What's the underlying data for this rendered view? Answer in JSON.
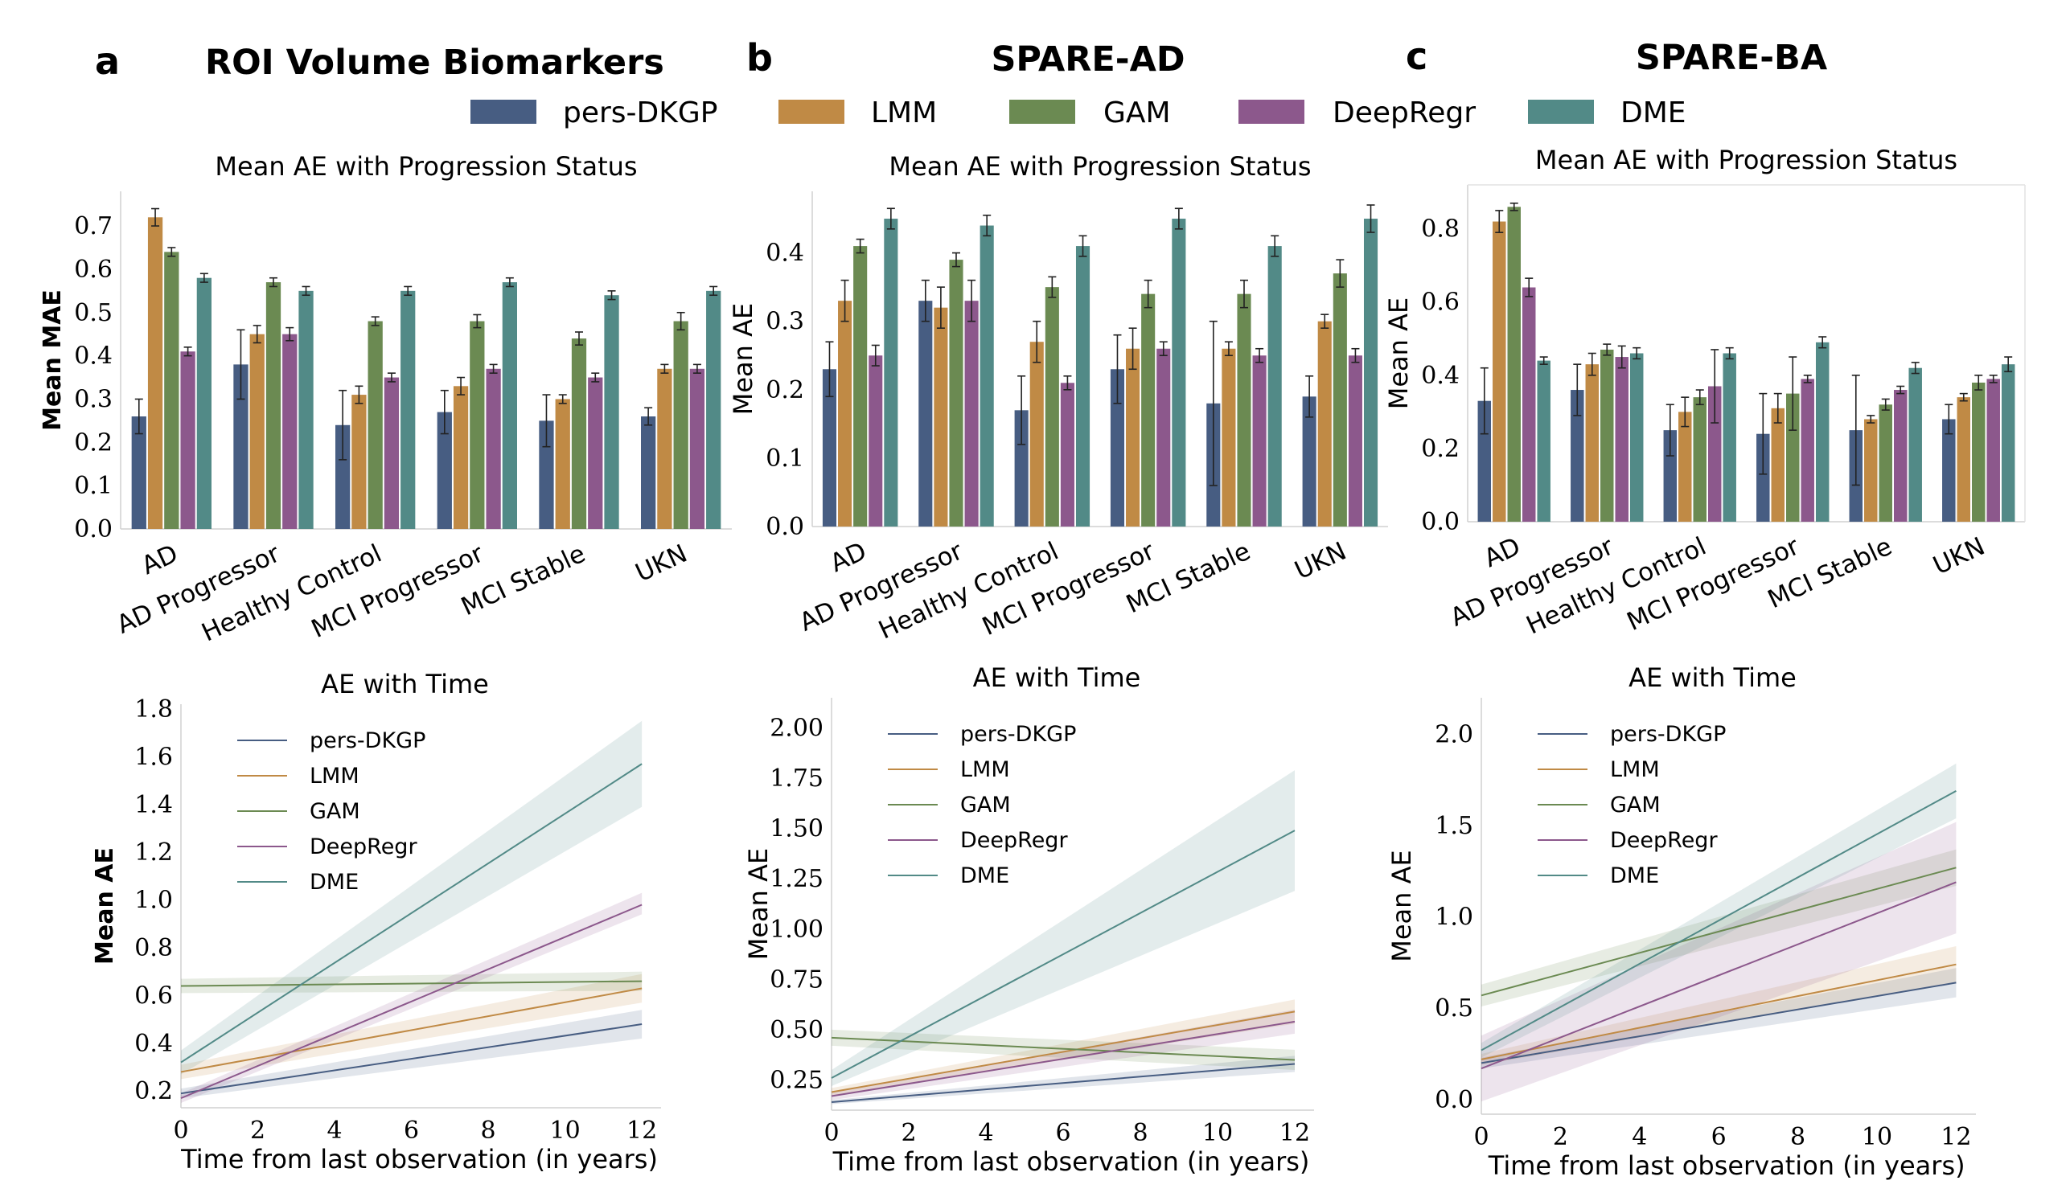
{
  "colors": {
    "pers-DKGP": "#475d82",
    "LMM": "#c08a45",
    "GAM": "#6b8a52",
    "DeepRegr": "#8c588c",
    "DME": "#528a87"
  },
  "legend": {
    "items": [
      "pers-DKGP",
      "LMM",
      "GAM",
      "DeepRegr",
      "DME"
    ]
  },
  "panels": [
    {
      "letter": "a",
      "title": "ROI Volume Biomarkers"
    },
    {
      "letter": "b",
      "title": "SPARE-AD"
    },
    {
      "letter": "c",
      "title": "SPARE-BA"
    }
  ],
  "chart_data": [
    {
      "id": "bar_a",
      "type": "bar",
      "title": "Mean AE with Progression Status",
      "xlabel": "",
      "ylabel": "Mean MAE",
      "ylabel_bold": true,
      "ylim": [
        0,
        0.78
      ],
      "yticks": [
        0.0,
        0.1,
        0.2,
        0.3,
        0.4,
        0.5,
        0.6,
        0.7
      ],
      "ytick_labels": [
        "0.0",
        "0.1",
        "0.2",
        "0.3",
        "0.4",
        "0.5",
        "0.6",
        "0.7"
      ],
      "categories": [
        "AD",
        "AD Progressor",
        "Healthy Control",
        "MCI Progressor",
        "MCI Stable",
        "UKN"
      ],
      "series": [
        {
          "name": "pers-DKGP",
          "values": [
            0.26,
            0.38,
            0.24,
            0.27,
            0.25,
            0.26
          ],
          "err": [
            0.04,
            0.08,
            0.08,
            0.05,
            0.06,
            0.02
          ]
        },
        {
          "name": "LMM",
          "values": [
            0.72,
            0.45,
            0.31,
            0.33,
            0.3,
            0.37
          ],
          "err": [
            0.02,
            0.02,
            0.02,
            0.02,
            0.01,
            0.01
          ]
        },
        {
          "name": "GAM",
          "values": [
            0.64,
            0.57,
            0.48,
            0.48,
            0.44,
            0.48
          ],
          "err": [
            0.01,
            0.01,
            0.01,
            0.015,
            0.015,
            0.02
          ]
        },
        {
          "name": "DeepRegr",
          "values": [
            0.41,
            0.45,
            0.35,
            0.37,
            0.35,
            0.37
          ],
          "err": [
            0.01,
            0.015,
            0.01,
            0.01,
            0.01,
            0.01
          ]
        },
        {
          "name": "DME",
          "values": [
            0.58,
            0.55,
            0.55,
            0.57,
            0.54,
            0.55
          ],
          "err": [
            0.01,
            0.01,
            0.01,
            0.01,
            0.01,
            0.01
          ]
        }
      ]
    },
    {
      "id": "bar_b",
      "type": "bar",
      "title": "Mean AE with Progression Status",
      "xlabel": "",
      "ylabel": "Mean AE",
      "ylabel_bold": false,
      "ylim": [
        0,
        0.49
      ],
      "yticks": [
        0.0,
        0.1,
        0.2,
        0.3,
        0.4
      ],
      "ytick_labels": [
        "0.0",
        "0.1",
        "0.2",
        "0.3",
        "0.4"
      ],
      "categories": [
        "AD",
        "AD Progressor",
        "Healthy Control",
        "MCI Progressor",
        "MCI Stable",
        "UKN"
      ],
      "series": [
        {
          "name": "pers-DKGP",
          "values": [
            0.23,
            0.33,
            0.17,
            0.23,
            0.18,
            0.19
          ],
          "err": [
            0.04,
            0.03,
            0.05,
            0.05,
            0.12,
            0.03
          ]
        },
        {
          "name": "LMM",
          "values": [
            0.33,
            0.32,
            0.27,
            0.26,
            0.26,
            0.3
          ],
          "err": [
            0.03,
            0.03,
            0.03,
            0.03,
            0.01,
            0.01
          ]
        },
        {
          "name": "GAM",
          "values": [
            0.41,
            0.39,
            0.35,
            0.34,
            0.34,
            0.37
          ],
          "err": [
            0.01,
            0.01,
            0.015,
            0.02,
            0.02,
            0.02
          ]
        },
        {
          "name": "DeepRegr",
          "values": [
            0.25,
            0.33,
            0.21,
            0.26,
            0.25,
            0.25
          ],
          "err": [
            0.015,
            0.03,
            0.01,
            0.01,
            0.01,
            0.01
          ]
        },
        {
          "name": "DME",
          "values": [
            0.45,
            0.44,
            0.41,
            0.45,
            0.41,
            0.45
          ],
          "err": [
            0.015,
            0.015,
            0.015,
            0.015,
            0.015,
            0.02
          ]
        }
      ]
    },
    {
      "id": "bar_c",
      "type": "bar",
      "title": "Mean AE with Progression Status",
      "xlabel": "",
      "ylabel": "Mean AE",
      "ylabel_bold": false,
      "ylim": [
        0,
        0.92
      ],
      "yticks": [
        0.0,
        0.2,
        0.4,
        0.6,
        0.8
      ],
      "ytick_labels": [
        "0.0",
        "0.2",
        "0.4",
        "0.6",
        "0.8"
      ],
      "categories": [
        "AD",
        "AD Progressor",
        "Healthy Control",
        "MCI Progressor",
        "MCI Stable",
        "UKN"
      ],
      "series": [
        {
          "name": "pers-DKGP",
          "values": [
            0.33,
            0.36,
            0.25,
            0.24,
            0.25,
            0.28
          ],
          "err": [
            0.09,
            0.07,
            0.07,
            0.11,
            0.15,
            0.04
          ]
        },
        {
          "name": "LMM",
          "values": [
            0.82,
            0.43,
            0.3,
            0.31,
            0.28,
            0.34
          ],
          "err": [
            0.03,
            0.03,
            0.04,
            0.04,
            0.01,
            0.01
          ]
        },
        {
          "name": "GAM",
          "values": [
            0.86,
            0.47,
            0.34,
            0.35,
            0.32,
            0.38
          ],
          "err": [
            0.01,
            0.015,
            0.02,
            0.1,
            0.015,
            0.02
          ]
        },
        {
          "name": "DeepRegr",
          "values": [
            0.64,
            0.45,
            0.37,
            0.39,
            0.36,
            0.39
          ],
          "err": [
            0.025,
            0.03,
            0.1,
            0.01,
            0.01,
            0.01
          ]
        },
        {
          "name": "DME",
          "values": [
            0.44,
            0.46,
            0.46,
            0.49,
            0.42,
            0.43
          ],
          "err": [
            0.01,
            0.015,
            0.015,
            0.015,
            0.015,
            0.02
          ]
        }
      ]
    },
    {
      "id": "line_a",
      "type": "line",
      "title": "AE with Time",
      "xlabel": "Time from last observation (in years)",
      "ylabel": "Mean AE",
      "ylabel_bold": true,
      "xlim": [
        0,
        12.5
      ],
      "ylim": [
        0.13,
        1.82
      ],
      "xticks": [
        0,
        2,
        4,
        6,
        8,
        10,
        12
      ],
      "xtick_labels": [
        "0",
        "2",
        "4",
        "6",
        "8",
        "10",
        "12"
      ],
      "yticks": [
        0.2,
        0.4,
        0.6,
        0.8,
        1.0,
        1.2,
        1.4,
        1.6,
        1.8
      ],
      "ytick_labels": [
        "0.2",
        "0.4",
        "0.6",
        "0.8",
        "1.0",
        "1.2",
        "1.4",
        "1.6",
        "1.8"
      ],
      "legend_position": "upper-left",
      "series": [
        {
          "name": "pers-DKGP",
          "x": [
            0,
            12
          ],
          "y": [
            0.19,
            0.48
          ],
          "band": [
            [
              0.17,
              0.21
            ],
            [
              0.42,
              0.54
            ]
          ]
        },
        {
          "name": "LMM",
          "x": [
            0,
            12
          ],
          "y": [
            0.28,
            0.63
          ],
          "band": [
            [
              0.25,
              0.31
            ],
            [
              0.57,
              0.69
            ]
          ]
        },
        {
          "name": "GAM",
          "x": [
            0,
            12
          ],
          "y": [
            0.64,
            0.66
          ],
          "band": [
            [
              0.61,
              0.67
            ],
            [
              0.62,
              0.7
            ]
          ]
        },
        {
          "name": "DeepRegr",
          "x": [
            0,
            12
          ],
          "y": [
            0.17,
            0.98
          ],
          "band": [
            [
              0.15,
              0.19
            ],
            [
              0.94,
              1.03
            ]
          ]
        },
        {
          "name": "DME",
          "x": [
            0,
            12
          ],
          "y": [
            0.32,
            1.57
          ],
          "band": [
            [
              0.27,
              0.37
            ],
            [
              1.39,
              1.75
            ]
          ]
        }
      ]
    },
    {
      "id": "line_b",
      "type": "line",
      "title": "AE with Time",
      "xlabel": "Time from last observation (in years)",
      "ylabel": "Mean AE",
      "ylabel_bold": false,
      "xlim": [
        0,
        12.5
      ],
      "ylim": [
        0.1,
        2.15
      ],
      "xticks": [
        0,
        2,
        4,
        6,
        8,
        10,
        12
      ],
      "xtick_labels": [
        "0",
        "2",
        "4",
        "6",
        "8",
        "10",
        "12"
      ],
      "yticks": [
        0.25,
        0.5,
        0.75,
        1.0,
        1.25,
        1.5,
        1.75,
        2.0
      ],
      "ytick_labels": [
        "0.25",
        "0.50",
        "0.75",
        "1.00",
        "1.25",
        "1.50",
        "1.75",
        "2.00"
      ],
      "legend_position": "upper-left",
      "series": [
        {
          "name": "pers-DKGP",
          "x": [
            0,
            12
          ],
          "y": [
            0.14,
            0.33
          ],
          "band": [
            [
              0.13,
              0.15
            ],
            [
              0.29,
              0.37
            ]
          ]
        },
        {
          "name": "LMM",
          "x": [
            0,
            12
          ],
          "y": [
            0.19,
            0.59
          ],
          "band": [
            [
              0.17,
              0.21
            ],
            [
              0.53,
              0.65
            ]
          ]
        },
        {
          "name": "GAM",
          "x": [
            0,
            12
          ],
          "y": [
            0.46,
            0.35
          ],
          "band": [
            [
              0.42,
              0.5
            ],
            [
              0.3,
              0.4
            ]
          ]
        },
        {
          "name": "DeepRegr",
          "x": [
            0,
            12
          ],
          "y": [
            0.17,
            0.54
          ],
          "band": [
            [
              0.15,
              0.19
            ],
            [
              0.48,
              0.6
            ]
          ]
        },
        {
          "name": "DME",
          "x": [
            0,
            12
          ],
          "y": [
            0.26,
            1.49
          ],
          "band": [
            [
              0.22,
              0.3
            ],
            [
              1.19,
              1.79
            ]
          ]
        }
      ]
    },
    {
      "id": "line_c",
      "type": "line",
      "title": "AE with Time",
      "xlabel": "Time from last observation (in years)",
      "ylabel": "Mean AE",
      "ylabel_bold": false,
      "xlim": [
        0,
        12.5
      ],
      "ylim": [
        -0.08,
        2.2
      ],
      "xticks": [
        0,
        2,
        4,
        6,
        8,
        10,
        12
      ],
      "xtick_labels": [
        "0",
        "2",
        "4",
        "6",
        "8",
        "10",
        "12"
      ],
      "yticks": [
        0.0,
        0.5,
        1.0,
        1.5,
        2.0
      ],
      "ytick_labels": [
        "0.0",
        "0.5",
        "1.0",
        "1.5",
        "2.0"
      ],
      "legend_position": "upper-left",
      "series": [
        {
          "name": "pers-DKGP",
          "x": [
            0,
            12
          ],
          "y": [
            0.2,
            0.64
          ],
          "band": [
            [
              0.17,
              0.23
            ],
            [
              0.56,
              0.72
            ]
          ]
        },
        {
          "name": "LMM",
          "x": [
            0,
            12
          ],
          "y": [
            0.22,
            0.74
          ],
          "band": [
            [
              0.19,
              0.25
            ],
            [
              0.64,
              0.84
            ]
          ]
        },
        {
          "name": "GAM",
          "x": [
            0,
            12
          ],
          "y": [
            0.57,
            1.27
          ],
          "band": [
            [
              0.51,
              0.63
            ],
            [
              1.17,
              1.37
            ]
          ]
        },
        {
          "name": "DeepRegr",
          "x": [
            0,
            12
          ],
          "y": [
            0.17,
            1.19
          ],
          "band": [
            [
              -0.01,
              0.35
            ],
            [
              0.91,
              1.52
            ]
          ]
        },
        {
          "name": "DME",
          "x": [
            0,
            12
          ],
          "y": [
            0.27,
            1.69
          ],
          "band": [
            [
              0.23,
              0.31
            ],
            [
              1.54,
              1.84
            ]
          ]
        }
      ]
    }
  ]
}
